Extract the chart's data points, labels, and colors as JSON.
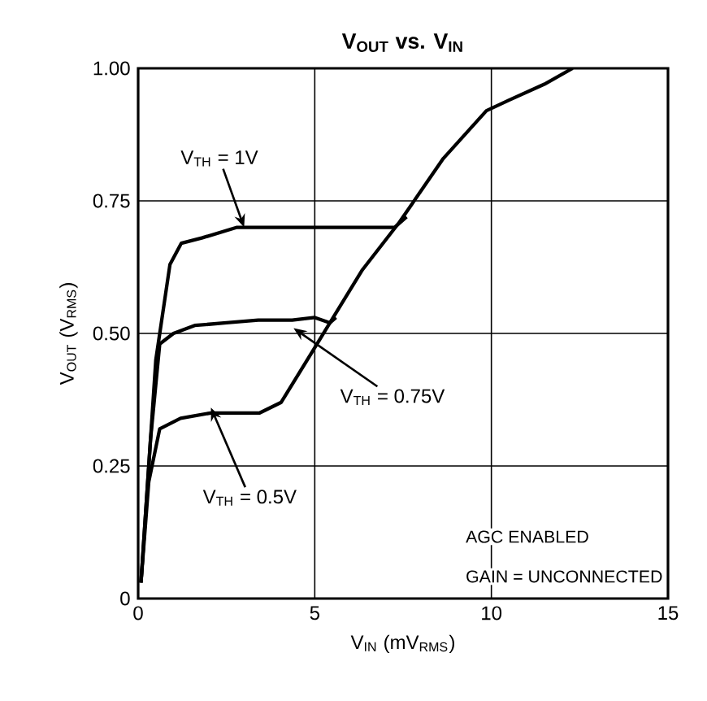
{
  "chart_data": {
    "type": "line",
    "title": "V$_{OUT}$ vs. V$_{IN}$",
    "xlabel": "V$_{IN}$ (mV$_{RMS}$)",
    "ylabel": "V$_{OUT}$ (V$_{RMS}$)",
    "xlim": [
      0,
      15
    ],
    "ylim": [
      0,
      1
    ],
    "xticks": [
      0,
      5,
      10,
      15
    ],
    "yticks": [
      0,
      {
        "value": 0.25,
        "label": "0.25"
      },
      {
        "value": 0.5,
        "label": "0.50"
      },
      {
        "value": 0.75,
        "label": "0.75"
      },
      {
        "value": 1,
        "label": "1.00"
      }
    ],
    "grid": true,
    "marker": "none",
    "line_style": "solid",
    "series": [
      {
        "color": "#000000",
        "x": [
          0.08,
          0.5,
          0.9,
          1.22,
          1.8,
          2.8,
          4.0,
          5.0,
          6.0,
          7.26,
          7.6
        ],
        "values": [
          0.03,
          0.45,
          0.63,
          0.67,
          0.68,
          0.7,
          0.7,
          0.7,
          0.7,
          0.7,
          0.72
        ]
      },
      {
        "color": "#000000",
        "x": [
          0.08,
          0.35,
          0.61,
          1.0,
          1.6,
          2.5,
          3.4,
          4.36,
          5.0,
          5.43,
          5.6
        ],
        "values": [
          0.03,
          0.3,
          0.48,
          0.5,
          0.515,
          0.52,
          0.525,
          0.525,
          0.53,
          0.52,
          0.53
        ]
      },
      {
        "color": "#000000",
        "x": [
          0.08,
          0.3,
          0.61,
          1.2,
          2.06,
          3.0,
          3.44,
          4.05,
          4.97,
          5.43,
          6.35,
          7.4,
          8.64,
          9.86,
          10.5,
          11.5,
          12.3
        ],
        "values": [
          0.03,
          0.22,
          0.32,
          0.34,
          0.35,
          0.35,
          0.35,
          0.37,
          0.47,
          0.52,
          0.62,
          0.71,
          0.83,
          0.92,
          0.94,
          0.97,
          1.0
        ]
      }
    ],
    "annotations": [
      {
        "text": "V$_{TH}$ = 1V",
        "x": 3.0,
        "y": 0.7
      },
      {
        "text": "V$_{TH}$ = 0.75V",
        "x": 4.4,
        "y": 0.51
      },
      {
        "text": "V$_{TH}$ = 0.5V",
        "x": 2.06,
        "y": 0.36
      },
      "AGC ENABLED",
      "GAIN = UNCONNECTED"
    ]
  }
}
